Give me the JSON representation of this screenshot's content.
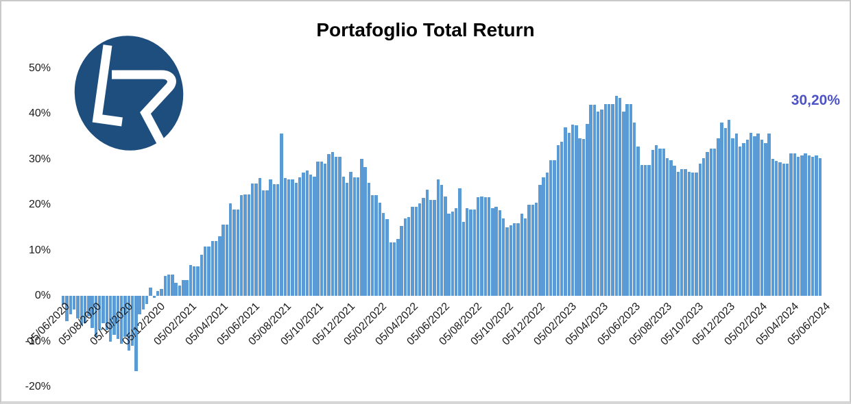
{
  "title": "Portafoglio Total Return",
  "final_value_label": "30,20%",
  "logo": {
    "letters": "LR",
    "bg_color": "#1d4e7e",
    "letter_color": "#ffffff"
  },
  "colors": {
    "bar": "#5b9bd5",
    "final_label": "#4d53c3",
    "title_text": "#000000",
    "axis_text": "#1a1a1a",
    "frame_border": "#c9c9c9"
  },
  "chart_data": {
    "type": "bar",
    "title": "Portafoglio Total Return",
    "x_interval": "weekly",
    "x_start_date": "05/06/2020",
    "x_end_date": "05/06/2024",
    "x_tick_labels": [
      "05/06/2020",
      "05/08/2020",
      "05/10/2020",
      "05/12/2020",
      "05/02/2021",
      "05/04/2021",
      "05/06/2021",
      "05/08/2021",
      "05/10/2021",
      "05/12/2021",
      "05/02/2022",
      "05/04/2022",
      "05/06/2022",
      "05/08/2022",
      "05/10/2022",
      "05/12/2022",
      "05/02/2023",
      "05/04/2023",
      "05/06/2023",
      "05/08/2023",
      "05/10/2023",
      "05/12/2023",
      "05/02/2024",
      "05/04/2024",
      "05/06/2024"
    ],
    "y_tick_labels": [
      "50%",
      "40%",
      "30%",
      "20%",
      "10%",
      "0%",
      "-10%",
      "-20%"
    ],
    "y_tick_values": [
      50,
      40,
      30,
      20,
      10,
      0,
      -10,
      -20
    ],
    "ylim": [
      -20,
      50
    ],
    "y_unit": "%",
    "gridlines": false,
    "final_value": 30.2,
    "values": [
      -2.0,
      -5.5,
      -4.0,
      -3.0,
      -5.0,
      -6.5,
      -6.0,
      -4.5,
      -7.0,
      -9.0,
      -7.5,
      -6.0,
      -7.5,
      -10.0,
      -8.5,
      -9.5,
      -10.5,
      -9.0,
      -12.0,
      -11.0,
      -16.5,
      -4.0,
      -3.0,
      -1.8,
      1.8,
      -0.5,
      1.0,
      1.5,
      4.3,
      4.6,
      4.6,
      2.8,
      2.3,
      3.5,
      3.5,
      6.8,
      6.5,
      6.5,
      9.0,
      10.8,
      10.8,
      12.1,
      12.1,
      13.1,
      15.6,
      15.6,
      20.3,
      19.0,
      19.0,
      22.1,
      22.3,
      22.3,
      24.6,
      24.6,
      25.8,
      23.2,
      23.2,
      25.6,
      24.5,
      24.5,
      35.6,
      25.8,
      25.6,
      25.6,
      24.8,
      26.0,
      27.1,
      27.6,
      26.6,
      26.2,
      29.5,
      29.5,
      29.0,
      31.2,
      31.6,
      30.5,
      30.5,
      26.1,
      24.8,
      27.3,
      26.0,
      26.0,
      30.1,
      28.3,
      24.8,
      22.1,
      22.1,
      20.4,
      18.2,
      16.8,
      11.8,
      11.8,
      12.5,
      15.3,
      17.0,
      17.3,
      19.5,
      19.5,
      20.3,
      21.5,
      23.3,
      21.1,
      21.1,
      25.6,
      24.3,
      21.8,
      18.0,
      18.5,
      19.3,
      23.6,
      16.3,
      19.3,
      19.0,
      19.0,
      21.6,
      21.8,
      21.6,
      21.6,
      19.3,
      19.5,
      18.8,
      17.0,
      15.0,
      15.5,
      15.9,
      15.9,
      18.1,
      17.0,
      20.0,
      20.0,
      20.5,
      24.3,
      26.0,
      27.1,
      29.8,
      29.8,
      33.1,
      33.8,
      37.0,
      35.8,
      37.6,
      37.4,
      34.6,
      34.5,
      37.8,
      41.9,
      41.9,
      40.4,
      40.9,
      42.1,
      42.1,
      42.1,
      43.9,
      43.4,
      40.4,
      42.1,
      42.1,
      38.1,
      32.8,
      28.8,
      28.8,
      28.8,
      32.1,
      33.1,
      32.3,
      32.3,
      30.3,
      29.8,
      28.6,
      27.3,
      27.8,
      27.8,
      27.3,
      27.0,
      27.0,
      29.1,
      30.3,
      31.6,
      32.3,
      32.3,
      34.6,
      38.1,
      36.8,
      38.6,
      34.6,
      35.6,
      32.8,
      33.6,
      34.3,
      35.8,
      35.1,
      35.6,
      34.3,
      33.6,
      35.6,
      30.1,
      29.6,
      29.3,
      29.1,
      29.1,
      31.3,
      31.3,
      30.6,
      30.8,
      31.3,
      30.9,
      30.5,
      30.8,
      30.2
    ]
  }
}
